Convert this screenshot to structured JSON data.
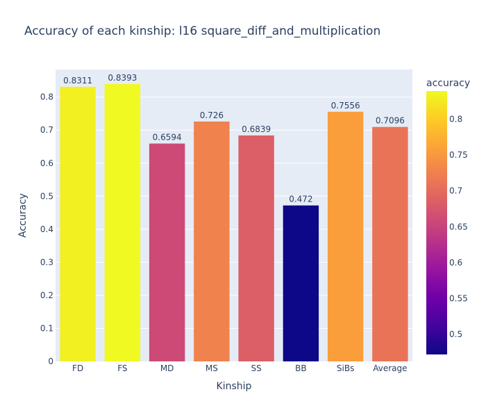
{
  "chart_data": {
    "type": "bar",
    "title": "Accuracy of each kinship: l16 square_diff_and_multiplication",
    "xlabel": "Kinship",
    "ylabel": "Accuracy",
    "categories": [
      "FD",
      "FS",
      "MD",
      "MS",
      "SS",
      "BB",
      "SiBs",
      "Average"
    ],
    "values": [
      0.8311,
      0.8393,
      0.6594,
      0.726,
      0.6839,
      0.472,
      0.7556,
      0.7096
    ],
    "data_labels": [
      "0.8311",
      "0.8393",
      "0.6594",
      "0.726",
      "0.6839",
      "0.472",
      "0.7556",
      "0.7096"
    ],
    "ylim": [
      0,
      0.8835
    ],
    "yticks": [
      0,
      0.1,
      0.2,
      0.3,
      0.4,
      0.5,
      0.6,
      0.7,
      0.8
    ],
    "ytick_labels": [
      "0",
      "0.1",
      "0.2",
      "0.3",
      "0.4",
      "0.5",
      "0.6",
      "0.7",
      "0.8"
    ],
    "grid": true,
    "colorbar": {
      "title": "accuracy",
      "colorscale": "plasma",
      "range": [
        0.472,
        0.8393
      ],
      "ticks": [
        0.5,
        0.55,
        0.6,
        0.65,
        0.7,
        0.75,
        0.8
      ],
      "tick_labels": [
        "0.5",
        "0.55",
        "0.6",
        "0.65",
        "0.7",
        "0.75",
        "0.8"
      ]
    },
    "colors": {
      "plot_background": "#E5ECF6",
      "gridline": "#ffffff",
      "text": "#2a3f5f"
    }
  }
}
